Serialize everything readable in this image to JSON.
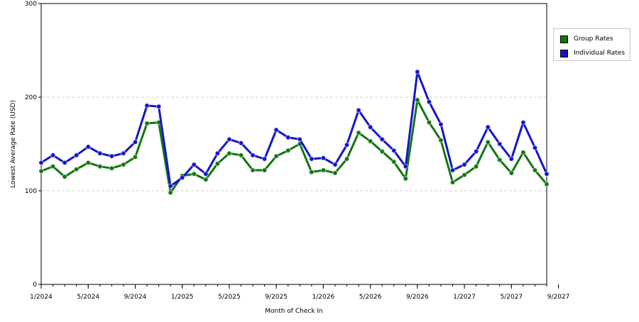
{
  "chart_data": {
    "type": "line",
    "title": "",
    "xlabel": "Month of Check In",
    "ylabel": "Lowest Average Rate (USD)",
    "ylim": [
      0,
      300
    ],
    "y_ticks": [
      "0",
      "100",
      "200",
      "300"
    ],
    "x_start": "1/2024",
    "x_end": "9/2027",
    "x_ticks": [
      "1/2024",
      "5/2024",
      "9/2024",
      "1/2025",
      "5/2025",
      "9/2025",
      "1/2026",
      "5/2026",
      "9/2026",
      "1/2027",
      "5/2027",
      "9/2027"
    ],
    "grid": "horizontal dashed",
    "legend": "right",
    "series": [
      {
        "name": "Group Rates",
        "color": "#117711",
        "values": [
          121,
          126,
          115,
          123,
          130,
          126,
          124,
          128,
          136,
          172,
          173,
          98,
          116,
          118,
          112,
          129,
          140,
          138,
          122,
          122,
          137,
          143,
          150,
          120,
          122,
          119,
          134,
          162,
          153,
          142,
          131,
          113,
          197,
          173,
          154,
          109,
          117,
          126,
          152,
          133,
          119,
          141,
          122,
          107
        ]
      },
      {
        "name": "Individual Rates",
        "color": "#1515cc",
        "values": [
          130,
          138,
          130,
          138,
          147,
          140,
          137,
          140,
          152,
          191,
          190,
          105,
          114,
          128,
          118,
          140,
          155,
          151,
          138,
          134,
          165,
          157,
          155,
          134,
          135,
          128,
          149,
          186,
          168,
          155,
          143,
          126,
          227,
          195,
          171,
          122,
          128,
          142,
          168,
          150,
          134,
          173,
          146,
          118
        ]
      }
    ]
  }
}
